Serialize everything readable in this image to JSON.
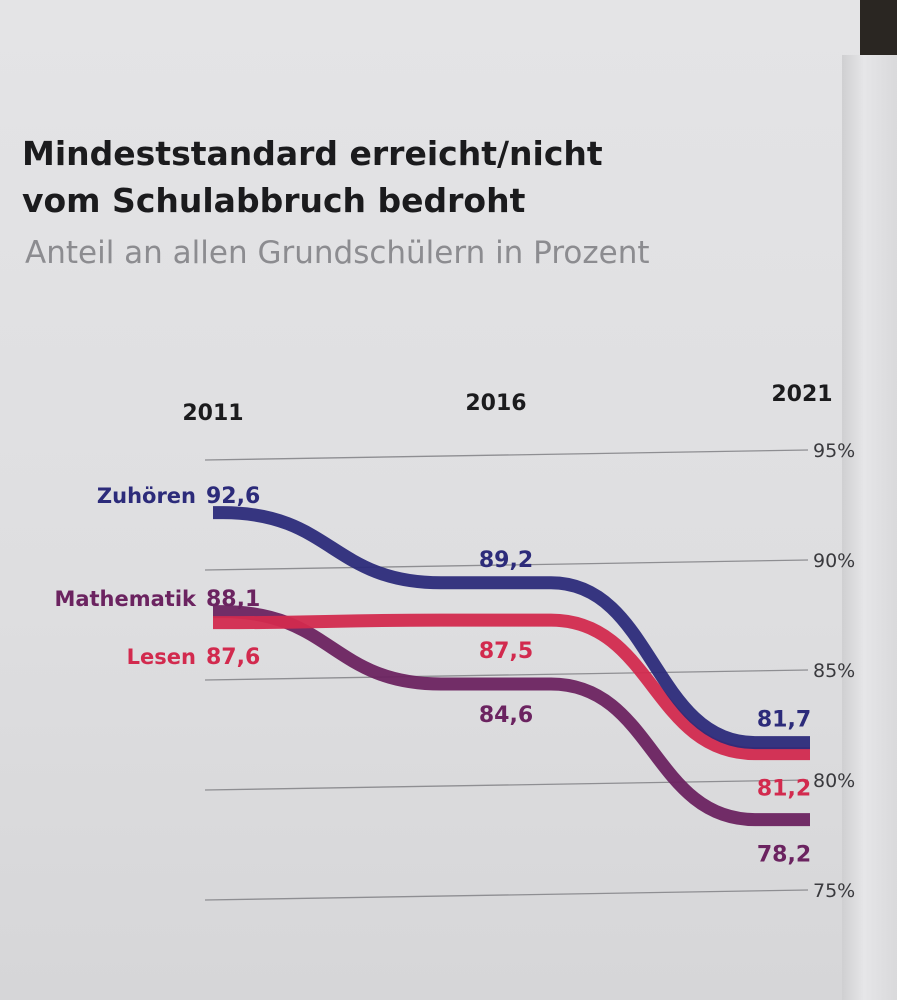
{
  "title_line1": "Mindeststandard erreicht/nicht",
  "title_line2": "vom Schulabbruch bedroht",
  "subtitle": "Anteil an allen Grundschülern in Prozent",
  "chart_data": {
    "type": "line",
    "x": [
      "2011",
      "2016",
      "2021"
    ],
    "y_ticks": [
      "95%",
      "90%",
      "85%",
      "80%",
      "75%"
    ],
    "y_tick_values": [
      95,
      90,
      85,
      80,
      75
    ],
    "ylim": [
      75,
      95
    ],
    "grid": true,
    "legend": "labels at start of lines",
    "series": [
      {
        "name": "Zuhören",
        "values": [
          92.6,
          89.2,
          81.7
        ],
        "labels": [
          "92,6",
          "89,2",
          "81,7"
        ],
        "color": "#2c2b7a"
      },
      {
        "name": "Lesen",
        "values": [
          87.6,
          87.5,
          81.2
        ],
        "labels": [
          "87,6",
          "87,5",
          "81,2"
        ],
        "color": "#d22a4e"
      },
      {
        "name": "Mathematik",
        "values": [
          88.1,
          84.6,
          78.2
        ],
        "labels": [
          "88,1",
          "84,6",
          "78,2"
        ],
        "color": "#6b2360"
      }
    ]
  }
}
